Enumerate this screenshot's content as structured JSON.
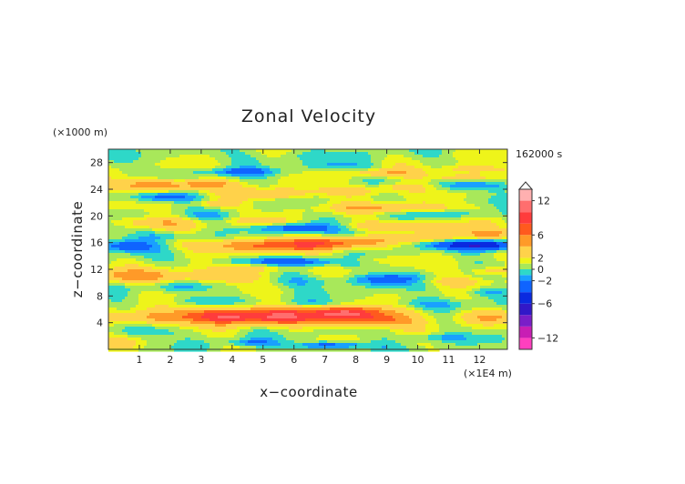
{
  "chart_data": {
    "type": "heatmap",
    "title": "Zonal Velocity",
    "xlabel": "x−coordinate",
    "ylabel": "z−coordinate",
    "x_unit": "(×1E4 m)",
    "y_unit": "(×1000 m)",
    "time_label": "162000 s",
    "xlim": [
      0,
      12.9
    ],
    "ylim": [
      0,
      30
    ],
    "x_ticks": [
      1,
      2,
      3,
      4,
      5,
      6,
      7,
      8,
      9,
      10,
      11,
      12
    ],
    "y_ticks": [
      4,
      8,
      12,
      16,
      20,
      24,
      28
    ],
    "colorbar": {
      "levels": [
        -14,
        -12,
        -10,
        -8,
        -6,
        -4,
        -2,
        -1,
        0,
        1,
        2,
        4,
        6,
        8,
        10,
        12,
        14
      ],
      "colors": [
        "#ff3fbf",
        "#c81eb4",
        "#7a1ec8",
        "#3218c8",
        "#0a2ae0",
        "#0f64ff",
        "#19a0ff",
        "#2ed8c8",
        "#a8e85a",
        "#eef41a",
        "#ffd24a",
        "#ff9a28",
        "#ff5a1e",
        "#ff3c3c",
        "#ff6e6e",
        "#ffb0b0"
      ],
      "tick_labels": [
        "12",
        "6",
        "2",
        "0",
        "−2",
        "−6",
        "−12"
      ],
      "tick_values": [
        12,
        6,
        2,
        0,
        -2,
        -6,
        -12
      ],
      "extend": "max"
    },
    "features": [
      {
        "x": 5.8,
        "z": 5.0,
        "sx": 2.4,
        "sz": 0.9,
        "u": 8
      },
      {
        "x": 3.8,
        "z": 5.0,
        "sx": 0.9,
        "sz": 0.7,
        "u": 4
      },
      {
        "x": 8.6,
        "z": 4.2,
        "sx": 0.8,
        "sz": 0.6,
        "u": 4
      },
      {
        "x": 7.8,
        "z": 5.5,
        "sx": 0.7,
        "sz": 0.6,
        "u": 5
      },
      {
        "x": 1.3,
        "z": 4.8,
        "sx": 0.9,
        "sz": 0.7,
        "u": 3
      },
      {
        "x": 12.3,
        "z": 4.8,
        "sx": 0.6,
        "sz": 0.7,
        "u": 3
      },
      {
        "x": 4.6,
        "z": 1.0,
        "sx": 0.6,
        "sz": 0.4,
        "u": -2.5
      },
      {
        "x": 7.2,
        "z": 0.6,
        "sx": 0.9,
        "sz": 0.4,
        "u": -4
      },
      {
        "x": 10.6,
        "z": 1.8,
        "sx": 0.8,
        "sz": 0.4,
        "u": -2
      },
      {
        "x": 1.2,
        "z": 2.6,
        "sx": 0.9,
        "sz": 0.6,
        "u": -1.5
      },
      {
        "x": 3.0,
        "z": 7.3,
        "sx": 0.6,
        "sz": 0.5,
        "u": -2
      },
      {
        "x": 6.5,
        "z": 6.9,
        "sx": 0.8,
        "sz": 0.4,
        "u": -1.5
      },
      {
        "x": 10.4,
        "z": 6.8,
        "sx": 1.2,
        "sz": 0.6,
        "u": -1.5
      },
      {
        "x": 12.2,
        "z": 8.5,
        "sx": 0.6,
        "sz": 0.5,
        "u": -2
      },
      {
        "x": 1.2,
        "z": 11.0,
        "sx": 1.5,
        "sz": 0.7,
        "u": 4
      },
      {
        "x": 4.0,
        "z": 10.8,
        "sx": 0.7,
        "sz": 0.6,
        "u": 2.5
      },
      {
        "x": 9.0,
        "z": 10.5,
        "sx": 0.8,
        "sz": 0.6,
        "u": -3.5
      },
      {
        "x": 6.2,
        "z": 10.2,
        "sx": 1.2,
        "sz": 0.6,
        "u": -1.5
      },
      {
        "x": 2.3,
        "z": 9.3,
        "sx": 0.9,
        "sz": 0.5,
        "u": -1.5
      },
      {
        "x": 11.2,
        "z": 10.2,
        "sx": 1.0,
        "sz": 0.5,
        "u": 2
      },
      {
        "x": 12.4,
        "z": 11.7,
        "sx": 0.5,
        "sz": 0.5,
        "u": 3
      },
      {
        "x": 5.0,
        "z": 12.3,
        "sx": 1.1,
        "sz": 0.5,
        "u": 2.5
      },
      {
        "x": 6.0,
        "z": 13.1,
        "sx": 1.6,
        "sz": 0.5,
        "u": -4
      },
      {
        "x": 8.3,
        "z": 13.3,
        "sx": 0.9,
        "sz": 0.5,
        "u": 2
      },
      {
        "x": 5.2,
        "z": 15.6,
        "sx": 1.6,
        "sz": 0.7,
        "u": 6
      },
      {
        "x": 7.4,
        "z": 16.0,
        "sx": 1.0,
        "sz": 0.6,
        "u": 4
      },
      {
        "x": 10.5,
        "z": 16.8,
        "sx": 1.4,
        "sz": 0.6,
        "u": 3
      },
      {
        "x": 12.3,
        "z": 17.4,
        "sx": 0.7,
        "sz": 0.5,
        "u": 3
      },
      {
        "x": 12.4,
        "z": 15.6,
        "sx": 0.8,
        "sz": 0.6,
        "u": -6
      },
      {
        "x": 11.0,
        "z": 15.7,
        "sx": 0.8,
        "sz": 0.5,
        "u": -3
      },
      {
        "x": 0.5,
        "z": 15.5,
        "sx": 0.7,
        "sz": 0.7,
        "u": -4
      },
      {
        "x": 2.0,
        "z": 17.0,
        "sx": 0.8,
        "sz": 0.5,
        "u": -2
      },
      {
        "x": 6.0,
        "z": 18.2,
        "sx": 1.0,
        "sz": 0.5,
        "u": -3.5
      },
      {
        "x": 9.5,
        "z": 18.5,
        "sx": 1.4,
        "sz": 0.5,
        "u": 3
      },
      {
        "x": 8.8,
        "z": 17.4,
        "sx": 1.0,
        "sz": 0.4,
        "u": -1.5
      },
      {
        "x": 1.5,
        "z": 19.0,
        "sx": 1.0,
        "sz": 0.6,
        "u": 3
      },
      {
        "x": 5.0,
        "z": 19.2,
        "sx": 0.6,
        "sz": 0.4,
        "u": 2.5
      },
      {
        "x": 3.3,
        "z": 20.0,
        "sx": 0.6,
        "sz": 0.4,
        "u": -1.5
      },
      {
        "x": 3.5,
        "z": 21.8,
        "sx": 0.5,
        "sz": 0.4,
        "u": 3
      },
      {
        "x": 9.2,
        "z": 21.2,
        "sx": 1.4,
        "sz": 0.5,
        "u": 3.5
      },
      {
        "x": 11.2,
        "z": 20.3,
        "sx": 1.0,
        "sz": 0.4,
        "u": -1.5
      },
      {
        "x": 1.8,
        "z": 22.8,
        "sx": 0.7,
        "sz": 0.5,
        "u": -4
      },
      {
        "x": 5.2,
        "z": 23.3,
        "sx": 0.9,
        "sz": 0.6,
        "u": 3.5
      },
      {
        "x": 8.0,
        "z": 23.7,
        "sx": 1.0,
        "sz": 0.5,
        "u": 2.5
      },
      {
        "x": 1.5,
        "z": 24.6,
        "sx": 1.0,
        "sz": 0.6,
        "u": 5
      },
      {
        "x": 3.2,
        "z": 24.8,
        "sx": 0.6,
        "sz": 0.4,
        "u": 3
      },
      {
        "x": 9.5,
        "z": 24.4,
        "sx": 0.8,
        "sz": 0.4,
        "u": 2
      },
      {
        "x": 11.8,
        "z": 24.5,
        "sx": 1.0,
        "sz": 0.5,
        "u": -2.5
      },
      {
        "x": 11.4,
        "z": 25.8,
        "sx": 0.8,
        "sz": 0.4,
        "u": 3
      },
      {
        "x": 4.2,
        "z": 26.6,
        "sx": 0.9,
        "sz": 0.4,
        "u": -3
      },
      {
        "x": 9.0,
        "z": 26.4,
        "sx": 0.8,
        "sz": 0.4,
        "u": 3
      },
      {
        "x": 11.8,
        "z": 27.0,
        "sx": 0.8,
        "sz": 0.4,
        "u": 3
      },
      {
        "x": 7.5,
        "z": 27.5,
        "sx": 0.8,
        "sz": 0.4,
        "u": -1.5
      },
      {
        "x": 6.0,
        "z": 29.0,
        "sx": 2.0,
        "sz": 0.7,
        "u": -0.8
      },
      {
        "x": 0.3,
        "z": 0.8,
        "sx": 0.5,
        "sz": 0.6,
        "u": 2
      }
    ]
  }
}
